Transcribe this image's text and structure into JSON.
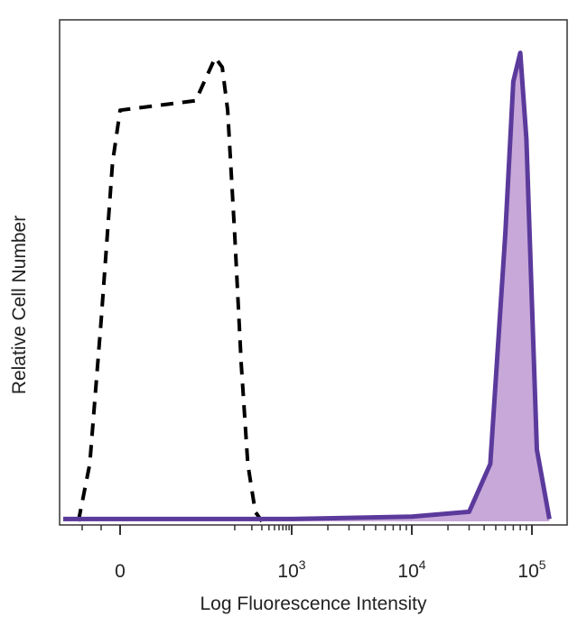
{
  "chart_data": {
    "type": "area",
    "xlabel": "Log Fluorescence Intensity",
    "ylabel": "Relative Cell Number",
    "x_scale": "biexponential",
    "xlim": [
      -150,
      200000
    ],
    "ylim": [
      0,
      1
    ],
    "ticks": [
      {
        "value": 0,
        "base": "0",
        "exp": ""
      },
      {
        "value": 1000,
        "base": "10",
        "exp": "3"
      },
      {
        "value": 10000,
        "base": "10",
        "exp": "4"
      },
      {
        "value": 100000,
        "base": "10",
        "exp": "5"
      }
    ],
    "series": [
      {
        "style": "dashed",
        "color": "#000000",
        "x": [
          -110,
          -80,
          -50,
          -20,
          0,
          20,
          45,
          60,
          75,
          100,
          130,
          170,
          230,
          300
        ],
        "y": [
          0.0,
          0.12,
          0.42,
          0.75,
          0.86,
          0.88,
          0.97,
          0.95,
          0.86,
          0.6,
          0.33,
          0.12,
          0.02,
          0.0
        ]
      },
      {
        "style": "solid-filled",
        "color": "#5b3a9c",
        "fill": "#c8a8d8",
        "x": [
          -150,
          1000,
          10000,
          30000,
          45000,
          60000,
          70000,
          80000,
          90000,
          110000,
          140000
        ],
        "y": [
          0.005,
          0.005,
          0.01,
          0.02,
          0.12,
          0.6,
          0.92,
          0.98,
          0.8,
          0.15,
          0.005
        ]
      }
    ]
  }
}
